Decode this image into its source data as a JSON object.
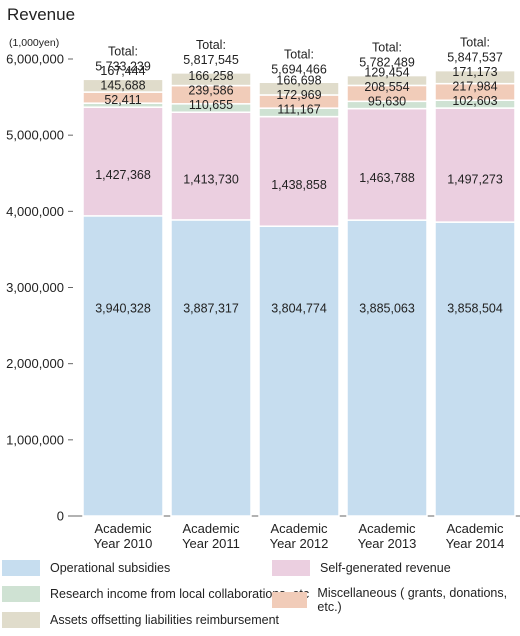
{
  "chart_data": {
    "type": "bar",
    "stacked": true,
    "title": "Revenue",
    "unit_label": "(1,000yen)",
    "categories": [
      [
        "Academic",
        "Year 2010"
      ],
      [
        "Academic",
        "Year 2011"
      ],
      [
        "Academic",
        "Year 2012"
      ],
      [
        "Academic",
        "Year 2013"
      ],
      [
        "Academic",
        "Year 2014"
      ]
    ],
    "ylim": [
      0,
      6000000
    ],
    "yticks": [
      {
        "value": 0,
        "label": "0"
      },
      {
        "value": 1000000,
        "label": "1,000,000"
      },
      {
        "value": 2000000,
        "label": "2,000,000"
      },
      {
        "value": 3000000,
        "label": "3,000,000"
      },
      {
        "value": 4000000,
        "label": "4,000,000"
      },
      {
        "value": 5000000,
        "label": "5,000,000"
      },
      {
        "value": 6000000,
        "label": "6,000,000"
      }
    ],
    "series": [
      {
        "name": "Operational subsidies",
        "color": "#c6ddef",
        "values": [
          3940328,
          3887317,
          3804774,
          3885063,
          3858504
        ],
        "labels": [
          "3,940,328",
          "3,887,317",
          "3,804,774",
          "3,885,063",
          "3,858,504"
        ]
      },
      {
        "name": "Self-generated revenue",
        "color": "#ebcfe0",
        "values": [
          1427368,
          1413730,
          1438858,
          1463788,
          1497273
        ],
        "labels": [
          "1,427,368",
          "1,413,730",
          "1,438,858",
          "1,463,788",
          "1,497,273"
        ]
      },
      {
        "name": "Research income from local collaborations, etc",
        "color": "#cfe2d3",
        "values": [
          52411,
          110655,
          111167,
          95630,
          102603
        ],
        "labels": [
          "52,411",
          "110,655",
          "111,167",
          "95,630",
          "102,603"
        ]
      },
      {
        "name": "Miscellaneous ( grants, donations, etc.)",
        "color": "#f1ccb9",
        "values": [
          145688,
          239586,
          172969,
          208554,
          217984
        ],
        "labels": [
          "145,688",
          "239,586",
          "172,969",
          "208,554",
          "217,984"
        ]
      },
      {
        "name": "Assets offsetting liabilities reimbursement",
        "color": "#e0dccb",
        "values": [
          167444,
          166258,
          166698,
          129454,
          171173
        ],
        "labels": [
          "167,444",
          "166,258",
          "166,698",
          "129,454",
          "171,173"
        ]
      }
    ],
    "total_label": "Total:",
    "totals": [
      "5,733,239",
      "5,817,545",
      "5,694,466",
      "5,782,489",
      "5,847,537"
    ],
    "legend_layout": "bottom, two columns",
    "legend_order": [
      0,
      1,
      2,
      3,
      4
    ],
    "grid": false
  }
}
